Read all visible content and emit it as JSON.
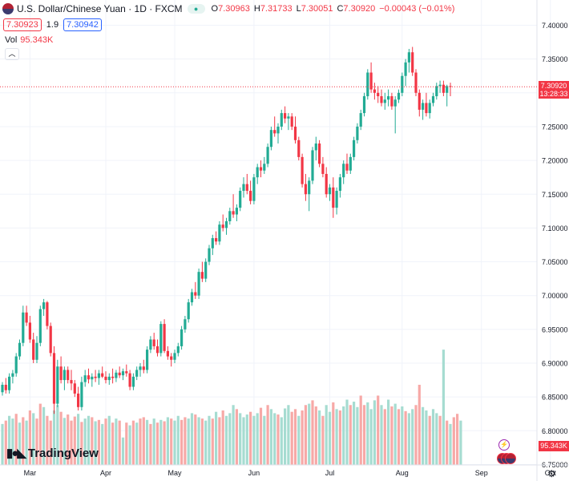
{
  "header": {
    "symbol": "U.S. Dollar/Chinese Yuan · 1D · FXCM",
    "open_label": "O",
    "open": "7.30963",
    "high_label": "H",
    "high": "7.31733",
    "low_label": "L",
    "low": "7.30051",
    "close_label": "C",
    "close": "7.30920",
    "change": "−0.00043 (−0.01%)",
    "sell_price": "7.30923",
    "spread": "1.9",
    "buy_price": "7.30942",
    "vol_label": "Vol",
    "vol_value": "95.343K"
  },
  "price_label": {
    "price": "7.30920",
    "countdown": "13:28:33"
  },
  "volume_label": "95.343K",
  "brand": "TradingView",
  "colors": {
    "up": "#22ab94",
    "down": "#f23645",
    "vol_up": "#a6dcd1",
    "vol_down": "#f7a9a7",
    "grid": "#f0f3fa"
  },
  "icons": [
    "flag-icon",
    "eye-icon",
    "chevron-up-icon",
    "tradingview-logo-icon",
    "gear-icon",
    "bolt-icon"
  ],
  "chart_data": {
    "type": "candlestick",
    "title": "U.S. Dollar/Chinese Yuan · 1D · FXCM",
    "xlabel": "",
    "ylabel": "",
    "ylim": [
      6.75,
      7.4
    ],
    "y_ticks": [
      "6.75000",
      "6.80000",
      "6.85000",
      "6.90000",
      "6.95000",
      "7.00000",
      "7.05000",
      "7.10000",
      "7.15000",
      "7.20000",
      "7.25000",
      "7.30000",
      "7.35000",
      "7.40000"
    ],
    "x_ticks": [
      {
        "label": "Mar",
        "index": 8
      },
      {
        "label": "Apr",
        "index": 30
      },
      {
        "label": "May",
        "index": 50
      },
      {
        "label": "Jun",
        "index": 73
      },
      {
        "label": "Jul",
        "index": 95
      },
      {
        "label": "Aug",
        "index": 116
      },
      {
        "label": "Sep",
        "index": 139
      },
      {
        "label": "Oct",
        "index": 159
      }
    ],
    "candles": [
      [
        6.857,
        6.872,
        6.852,
        6.868
      ],
      [
        6.868,
        6.878,
        6.855,
        6.86
      ],
      [
        6.86,
        6.885,
        6.855,
        6.88
      ],
      [
        6.88,
        6.89,
        6.87,
        6.885
      ],
      [
        6.885,
        6.915,
        6.88,
        6.91
      ],
      [
        6.91,
        6.935,
        6.905,
        6.93
      ],
      [
        6.93,
        6.985,
        6.925,
        6.975
      ],
      [
        6.975,
        6.985,
        6.955,
        6.96
      ],
      [
        6.96,
        6.97,
        6.93,
        6.935
      ],
      [
        6.935,
        6.945,
        6.9,
        6.905
      ],
      [
        6.905,
        6.94,
        6.9,
        6.93
      ],
      [
        6.93,
        6.985,
        6.925,
        6.98
      ],
      [
        6.98,
        6.995,
        6.97,
        6.99
      ],
      [
        6.99,
        6.992,
        6.95,
        6.955
      ],
      [
        6.955,
        6.96,
        6.91,
        6.915
      ],
      [
        6.915,
        6.925,
        6.825,
        6.84
      ],
      [
        6.84,
        6.905,
        6.835,
        6.895
      ],
      [
        6.895,
        6.91,
        6.87,
        6.875
      ],
      [
        6.875,
        6.895,
        6.86,
        6.89
      ],
      [
        6.89,
        6.895,
        6.87,
        6.875
      ],
      [
        6.875,
        6.89,
        6.86,
        6.87
      ],
      [
        6.87,
        6.875,
        6.85,
        6.855
      ],
      [
        6.855,
        6.865,
        6.83,
        6.835
      ],
      [
        6.835,
        6.88,
        6.83,
        6.872
      ],
      [
        6.872,
        6.89,
        6.865,
        6.882
      ],
      [
        6.882,
        6.892,
        6.87,
        6.876
      ],
      [
        6.876,
        6.885,
        6.865,
        6.88
      ],
      [
        6.88,
        6.89,
        6.872,
        6.878
      ],
      [
        6.878,
        6.89,
        6.868,
        6.885
      ],
      [
        6.885,
        6.895,
        6.878,
        6.88
      ],
      [
        6.88,
        6.888,
        6.87,
        6.875
      ],
      [
        6.875,
        6.885,
        6.868,
        6.88
      ],
      [
        6.88,
        6.892,
        6.87,
        6.878
      ],
      [
        6.878,
        6.89,
        6.872,
        6.886
      ],
      [
        6.886,
        6.895,
        6.878,
        6.882
      ],
      [
        6.882,
        6.892,
        6.875,
        6.888
      ],
      [
        6.888,
        6.898,
        6.88,
        6.885
      ],
      [
        6.885,
        6.89,
        6.86,
        6.865
      ],
      [
        6.865,
        6.885,
        6.86,
        6.88
      ],
      [
        6.88,
        6.895,
        6.875,
        6.89
      ],
      [
        6.89,
        6.9,
        6.88,
        6.895
      ],
      [
        6.895,
        6.905,
        6.885,
        6.89
      ],
      [
        6.89,
        6.925,
        6.885,
        6.92
      ],
      [
        6.92,
        6.94,
        6.915,
        6.935
      ],
      [
        6.935,
        6.945,
        6.92,
        6.925
      ],
      [
        6.925,
        6.935,
        6.91,
        6.915
      ],
      [
        6.915,
        6.962,
        6.91,
        6.958
      ],
      [
        6.958,
        6.965,
        6.915,
        6.918
      ],
      [
        6.918,
        6.925,
        6.905,
        6.91
      ],
      [
        6.91,
        6.915,
        6.895,
        6.905
      ],
      [
        6.905,
        6.92,
        6.9,
        6.915
      ],
      [
        6.915,
        6.93,
        6.91,
        6.925
      ],
      [
        6.925,
        6.955,
        6.92,
        6.95
      ],
      [
        6.95,
        6.97,
        6.945,
        6.965
      ],
      [
        6.965,
        6.995,
        6.96,
        6.99
      ],
      [
        6.99,
        7.01,
        6.985,
        7.005
      ],
      [
        7.005,
        7.02,
        6.995,
        7.0
      ],
      [
        7.0,
        7.04,
        6.995,
        7.035
      ],
      [
        7.035,
        7.05,
        7.02,
        7.025
      ],
      [
        7.025,
        7.055,
        7.02,
        7.05
      ],
      [
        7.05,
        7.075,
        7.045,
        7.07
      ],
      [
        7.07,
        7.09,
        7.06,
        7.085
      ],
      [
        7.085,
        7.095,
        7.075,
        7.08
      ],
      [
        7.08,
        7.11,
        7.075,
        7.105
      ],
      [
        7.105,
        7.12,
        7.095,
        7.1
      ],
      [
        7.1,
        7.115,
        7.09,
        7.11
      ],
      [
        7.11,
        7.13,
        7.105,
        7.125
      ],
      [
        7.125,
        7.15,
        7.115,
        7.12
      ],
      [
        7.12,
        7.135,
        7.11,
        7.13
      ],
      [
        7.13,
        7.16,
        7.125,
        7.155
      ],
      [
        7.155,
        7.175,
        7.145,
        7.165
      ],
      [
        7.165,
        7.18,
        7.15,
        7.155
      ],
      [
        7.155,
        7.17,
        7.135,
        7.14
      ],
      [
        7.14,
        7.18,
        7.135,
        7.175
      ],
      [
        7.175,
        7.195,
        7.165,
        7.19
      ],
      [
        7.19,
        7.2,
        7.175,
        7.185
      ],
      [
        7.185,
        7.205,
        7.18,
        7.195
      ],
      [
        7.195,
        7.225,
        7.19,
        7.22
      ],
      [
        7.22,
        7.25,
        7.215,
        7.245
      ],
      [
        7.245,
        7.265,
        7.235,
        7.24
      ],
      [
        7.24,
        7.255,
        7.225,
        7.25
      ],
      [
        7.25,
        7.275,
        7.245,
        7.27
      ],
      [
        7.27,
        7.28,
        7.255,
        7.262
      ],
      [
        7.262,
        7.27,
        7.245,
        7.265
      ],
      [
        7.265,
        7.27,
        7.245,
        7.25
      ],
      [
        7.25,
        7.265,
        7.225,
        7.23
      ],
      [
        7.23,
        7.235,
        7.2,
        7.205
      ],
      [
        7.205,
        7.21,
        7.16,
        7.165
      ],
      [
        7.165,
        7.18,
        7.14,
        7.15
      ],
      [
        7.15,
        7.175,
        7.125,
        7.17
      ],
      [
        7.17,
        7.22,
        7.165,
        7.215
      ],
      [
        7.215,
        7.235,
        7.2,
        7.225
      ],
      [
        7.225,
        7.23,
        7.19,
        7.195
      ],
      [
        7.195,
        7.205,
        7.175,
        7.18
      ],
      [
        7.18,
        7.19,
        7.145,
        7.15
      ],
      [
        7.15,
        7.165,
        7.14,
        7.16
      ],
      [
        7.16,
        7.175,
        7.115,
        7.13
      ],
      [
        7.13,
        7.16,
        7.12,
        7.155
      ],
      [
        7.155,
        7.18,
        7.145,
        7.175
      ],
      [
        7.175,
        7.2,
        7.165,
        7.195
      ],
      [
        7.195,
        7.21,
        7.18,
        7.185
      ],
      [
        7.185,
        7.21,
        7.18,
        7.205
      ],
      [
        7.205,
        7.235,
        7.2,
        7.23
      ],
      [
        7.23,
        7.255,
        7.225,
        7.25
      ],
      [
        7.25,
        7.275,
        7.245,
        7.27
      ],
      [
        7.27,
        7.3,
        7.265,
        7.295
      ],
      [
        7.295,
        7.335,
        7.29,
        7.33
      ],
      [
        7.33,
        7.345,
        7.3,
        7.305
      ],
      [
        7.305,
        7.315,
        7.29,
        7.3
      ],
      [
        7.3,
        7.31,
        7.285,
        7.295
      ],
      [
        7.295,
        7.305,
        7.28,
        7.285
      ],
      [
        7.285,
        7.3,
        7.275,
        7.29
      ],
      [
        7.29,
        7.305,
        7.28,
        7.295
      ],
      [
        7.295,
        7.3,
        7.275,
        7.28
      ],
      [
        7.28,
        7.295,
        7.24,
        7.29
      ],
      [
        7.29,
        7.305,
        7.285,
        7.3
      ],
      [
        7.3,
        7.33,
        7.295,
        7.325
      ],
      [
        7.325,
        7.35,
        7.31,
        7.345
      ],
      [
        7.345,
        7.365,
        7.33,
        7.36
      ],
      [
        7.36,
        7.368,
        7.325,
        7.33
      ],
      [
        7.33,
        7.335,
        7.295,
        7.3
      ],
      [
        7.3,
        7.305,
        7.265,
        7.275
      ],
      [
        7.275,
        7.29,
        7.26,
        7.285
      ],
      [
        7.285,
        7.3,
        7.265,
        7.27
      ],
      [
        7.27,
        7.29,
        7.262,
        7.285
      ],
      [
        7.285,
        7.3,
        7.28,
        7.295
      ],
      [
        7.295,
        7.315,
        7.29,
        7.31
      ],
      [
        7.31,
        7.318,
        7.3,
        7.312
      ],
      [
        7.312,
        7.318,
        7.295,
        7.3
      ],
      [
        7.3,
        7.312,
        7.28,
        7.31
      ],
      [
        7.31,
        7.315,
        7.295,
        7.309
      ]
    ],
    "volumes": [
      [
        6.81,
        "up"
      ],
      [
        6.815,
        "down"
      ],
      [
        6.822,
        "up"
      ],
      [
        6.818,
        "up"
      ],
      [
        6.825,
        "down"
      ],
      [
        6.812,
        "up"
      ],
      [
        6.82,
        "down"
      ],
      [
        6.815,
        "up"
      ],
      [
        6.83,
        "down"
      ],
      [
        6.826,
        "up"
      ],
      [
        6.818,
        "down"
      ],
      [
        6.84,
        "down"
      ],
      [
        6.835,
        "up"
      ],
      [
        6.822,
        "down"
      ],
      [
        6.815,
        "down"
      ],
      [
        6.83,
        "up"
      ],
      [
        6.838,
        "up"
      ],
      [
        6.828,
        "down"
      ],
      [
        6.819,
        "up"
      ],
      [
        6.824,
        "down"
      ],
      [
        6.815,
        "down"
      ],
      [
        6.821,
        "down"
      ],
      [
        6.825,
        "up"
      ],
      [
        6.813,
        "down"
      ],
      [
        6.818,
        "up"
      ],
      [
        6.822,
        "up"
      ],
      [
        6.82,
        "down"
      ],
      [
        6.814,
        "up"
      ],
      [
        6.816,
        "down"
      ],
      [
        6.81,
        "up"
      ],
      [
        6.818,
        "down"
      ],
      [
        6.822,
        "up"
      ],
      [
        6.812,
        "down"
      ],
      [
        6.818,
        "up"
      ],
      [
        6.815,
        "down"
      ],
      [
        6.79,
        "up"
      ],
      [
        6.812,
        "down"
      ],
      [
        6.808,
        "up"
      ],
      [
        6.815,
        "down"
      ],
      [
        6.812,
        "up"
      ],
      [
        6.818,
        "down"
      ],
      [
        6.82,
        "down"
      ],
      [
        6.816,
        "up"
      ],
      [
        6.81,
        "down"
      ],
      [
        6.818,
        "up"
      ],
      [
        6.812,
        "down"
      ],
      [
        6.816,
        "up"
      ],
      [
        6.814,
        "down"
      ],
      [
        6.82,
        "up"
      ],
      [
        6.818,
        "down"
      ],
      [
        6.815,
        "up"
      ],
      [
        6.822,
        "up"
      ],
      [
        6.816,
        "down"
      ],
      [
        6.82,
        "down"
      ],
      [
        6.818,
        "up"
      ],
      [
        6.826,
        "up"
      ],
      [
        6.824,
        "down"
      ],
      [
        6.82,
        "up"
      ],
      [
        6.818,
        "down"
      ],
      [
        6.815,
        "up"
      ],
      [
        6.822,
        "up"
      ],
      [
        6.818,
        "down"
      ],
      [
        6.828,
        "up"
      ],
      [
        6.82,
        "down"
      ],
      [
        6.83,
        "down"
      ],
      [
        6.822,
        "up"
      ],
      [
        6.826,
        "up"
      ],
      [
        6.838,
        "up"
      ],
      [
        6.832,
        "down"
      ],
      [
        6.826,
        "up"
      ],
      [
        6.82,
        "up"
      ],
      [
        6.824,
        "up"
      ],
      [
        6.828,
        "down"
      ],
      [
        6.822,
        "up"
      ],
      [
        6.826,
        "up"
      ],
      [
        6.834,
        "down"
      ],
      [
        6.822,
        "up"
      ],
      [
        6.838,
        "down"
      ],
      [
        6.832,
        "up"
      ],
      [
        6.826,
        "up"
      ],
      [
        6.824,
        "down"
      ],
      [
        6.82,
        "up"
      ],
      [
        6.833,
        "up"
      ],
      [
        6.838,
        "up"
      ],
      [
        6.828,
        "down"
      ],
      [
        6.832,
        "down"
      ],
      [
        6.822,
        "up"
      ],
      [
        6.83,
        "down"
      ],
      [
        6.838,
        "down"
      ],
      [
        6.84,
        "up"
      ],
      [
        6.845,
        "down"
      ],
      [
        6.836,
        "down"
      ],
      [
        6.83,
        "up"
      ],
      [
        6.822,
        "down"
      ],
      [
        6.838,
        "up"
      ],
      [
        6.828,
        "up"
      ],
      [
        6.842,
        "down"
      ],
      [
        6.832,
        "up"
      ],
      [
        6.83,
        "down"
      ],
      [
        6.836,
        "up"
      ],
      [
        6.846,
        "up"
      ],
      [
        6.838,
        "down"
      ],
      [
        6.843,
        "up"
      ],
      [
        6.835,
        "up"
      ],
      [
        6.852,
        "down"
      ],
      [
        6.838,
        "down"
      ],
      [
        6.842,
        "up"
      ],
      [
        6.832,
        "up"
      ],
      [
        6.845,
        "up"
      ],
      [
        6.852,
        "down"
      ],
      [
        6.838,
        "up"
      ],
      [
        6.832,
        "down"
      ],
      [
        6.846,
        "up"
      ],
      [
        6.836,
        "down"
      ],
      [
        6.84,
        "up"
      ],
      [
        6.832,
        "down"
      ],
      [
        6.836,
        "up"
      ],
      [
        6.829,
        "down"
      ],
      [
        6.826,
        "up"
      ],
      [
        6.832,
        "up"
      ],
      [
        6.838,
        "down"
      ],
      [
        6.868,
        "down"
      ],
      [
        6.835,
        "up"
      ],
      [
        6.83,
        "up"
      ],
      [
        6.822,
        "down"
      ],
      [
        6.832,
        "up"
      ],
      [
        6.826,
        "up"
      ],
      [
        6.822,
        "down"
      ],
      [
        6.92,
        "up"
      ],
      [
        6.815,
        "down"
      ],
      [
        6.81,
        "up"
      ],
      [
        6.82,
        "down"
      ],
      [
        6.825,
        "down"
      ],
      [
        6.815,
        "up"
      ]
    ]
  }
}
